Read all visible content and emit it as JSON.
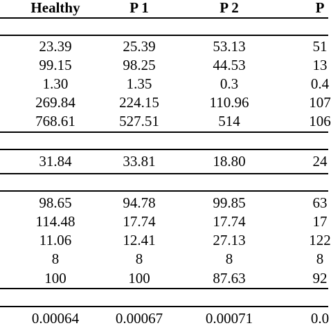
{
  "table": {
    "headers": [
      "Healthy",
      "P 1",
      "P 2",
      "P"
    ],
    "groups": [
      {
        "rows": [
          [
            "23.39",
            "25.39",
            "53.13",
            "51"
          ],
          [
            "99.15",
            "98.25",
            "44.53",
            "13"
          ],
          [
            "1.30",
            "1.35",
            "0.3",
            "0.4"
          ],
          [
            "269.84",
            "224.15",
            "110.96",
            "107"
          ],
          [
            "768.61",
            "527.51",
            "514",
            "106"
          ]
        ]
      },
      {
        "rows": [
          [
            "31.84",
            "33.81",
            "18.80",
            "24"
          ]
        ]
      },
      {
        "rows": [
          [
            "98.65",
            "94.78",
            "99.85",
            "63"
          ],
          [
            "114.48",
            "17.74",
            "17.74",
            "17"
          ],
          [
            "11.06",
            "12.41",
            "27.13",
            "122"
          ],
          [
            "8",
            "8",
            "8",
            "8"
          ],
          [
            "100",
            "100",
            "87.63",
            "92"
          ]
        ]
      },
      {
        "rows": [
          [
            "0.00064",
            "0.00067",
            "0.00071",
            "0.0"
          ]
        ]
      }
    ]
  }
}
